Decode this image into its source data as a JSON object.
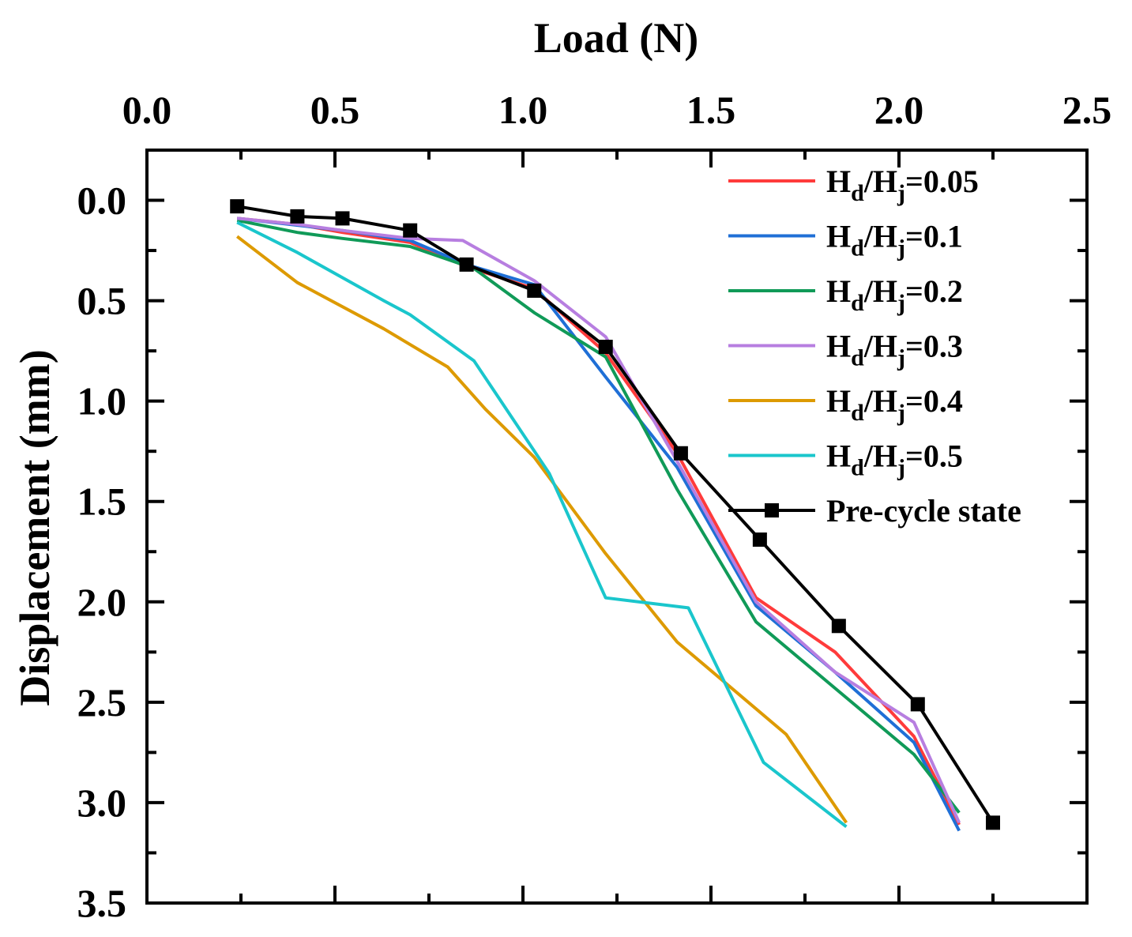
{
  "chart_data": {
    "type": "line",
    "title": "",
    "xlabel": "Load (N)",
    "ylabel": "Displacement (mm)",
    "xlim": [
      0.0,
      2.5
    ],
    "ylim": [
      -0.25,
      3.5
    ],
    "y_inverted": true,
    "x_axis_position": "top",
    "x_ticks": [
      "0.0",
      "0.5",
      "1.0",
      "1.5",
      "2.0",
      "2.5"
    ],
    "y_ticks": [
      "0.0",
      "0.5",
      "1.0",
      "1.5",
      "2.0",
      "2.5",
      "3.0",
      "3.5"
    ],
    "legend_position": "top-right",
    "series": [
      {
        "name_main": "H",
        "sub1": "d",
        "mid": "/H",
        "sub2": "j",
        "name_suffix": "=0.05",
        "color": "#ff3b3b",
        "marker": "none",
        "x": [
          0.24,
          0.4,
          0.52,
          0.7,
          0.85,
          1.03,
          1.22,
          1.41,
          1.62,
          1.83,
          2.04,
          2.16
        ],
        "y": [
          0.09,
          0.12,
          0.16,
          0.21,
          0.33,
          0.44,
          0.76,
          1.26,
          1.98,
          2.25,
          2.67,
          3.11
        ]
      },
      {
        "name_main": "H",
        "sub1": "d",
        "mid": "/H",
        "sub2": "j",
        "name_suffix": "=0.1",
        "color": "#1f6fd6",
        "marker": "none",
        "x": [
          0.24,
          0.52,
          0.7,
          0.85,
          1.03,
          1.22,
          1.41,
          1.62,
          1.83,
          2.04,
          2.16
        ],
        "y": [
          0.09,
          0.15,
          0.2,
          0.32,
          0.42,
          0.88,
          1.33,
          2.02,
          2.35,
          2.7,
          3.14
        ]
      },
      {
        "name_main": "H",
        "sub1": "d",
        "mid": "/H",
        "sub2": "j",
        "name_suffix": "=0.2",
        "color": "#109a58",
        "marker": "none",
        "x": [
          0.24,
          0.4,
          0.52,
          0.7,
          0.87,
          1.03,
          1.22,
          1.41,
          1.62,
          1.83,
          2.04,
          2.16
        ],
        "y": [
          0.1,
          0.16,
          0.19,
          0.23,
          0.34,
          0.56,
          0.78,
          1.44,
          2.1,
          2.43,
          2.76,
          3.05
        ]
      },
      {
        "name_main": "H",
        "sub1": "d",
        "mid": "/H",
        "sub2": "j",
        "name_suffix": "=0.3",
        "color": "#b77ee0",
        "marker": "none",
        "x": [
          0.24,
          0.4,
          0.52,
          0.7,
          0.84,
          1.03,
          1.22,
          1.41,
          1.62,
          1.83,
          2.04,
          2.16
        ],
        "y": [
          0.09,
          0.12,
          0.15,
          0.19,
          0.2,
          0.4,
          0.68,
          1.3,
          2.0,
          2.35,
          2.6,
          3.1
        ]
      },
      {
        "name_main": "H",
        "sub1": "d",
        "mid": "/H",
        "sub2": "j",
        "name_suffix": "=0.4",
        "color": "#dd9a00",
        "marker": "none",
        "x": [
          0.24,
          0.4,
          0.63,
          0.8,
          0.9,
          1.03,
          1.22,
          1.41,
          1.7,
          1.86
        ],
        "y": [
          0.18,
          0.41,
          0.64,
          0.83,
          1.04,
          1.28,
          1.76,
          2.2,
          2.66,
          3.1
        ]
      },
      {
        "name_main": "H",
        "sub1": "d",
        "mid": "/H",
        "sub2": "j",
        "name_suffix": "=0.5",
        "color": "#1ac6cc",
        "marker": "none",
        "x": [
          0.24,
          0.4,
          0.63,
          0.7,
          0.87,
          1.07,
          1.22,
          1.44,
          1.64,
          1.86
        ],
        "y": [
          0.11,
          0.26,
          0.5,
          0.57,
          0.8,
          1.36,
          1.98,
          2.03,
          2.8,
          3.12
        ]
      },
      {
        "name_main": "Pre-cycle state",
        "sub1": "",
        "mid": "",
        "sub2": "",
        "name_suffix": "",
        "color": "#000000",
        "marker": "square",
        "x": [
          0.24,
          0.4,
          0.52,
          0.7,
          0.85,
          1.03,
          1.22,
          1.42,
          1.63,
          1.84,
          2.05,
          2.25
        ],
        "y": [
          0.03,
          0.08,
          0.09,
          0.15,
          0.32,
          0.45,
          0.73,
          1.26,
          1.69,
          2.12,
          2.51,
          3.1
        ]
      }
    ]
  }
}
